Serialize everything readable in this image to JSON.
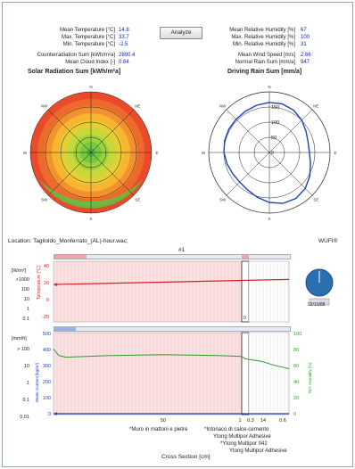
{
  "climate": {
    "left_stats": [
      {
        "label": "Mean Temperature [°C]",
        "value": "14.8"
      },
      {
        "label": "Max. Temperature [°C]",
        "value": "33.7"
      },
      {
        "label": "Min. Temperature [°C]",
        "value": "-2.5"
      }
    ],
    "left_stats2": [
      {
        "label": "Counterradiation Sum [kWh/m²a]",
        "value": "2890.4"
      },
      {
        "label": "Mean Cloud Index [-]",
        "value": "0.64"
      }
    ],
    "right_stats": [
      {
        "label": "Mean Relative Humidity [%]",
        "value": "67"
      },
      {
        "label": "Max. Relative Humidity [%]",
        "value": "100"
      },
      {
        "label": "Min. Relative Humidity [%]",
        "value": "31"
      }
    ],
    "right_stats2": [
      {
        "label": "Mean Wind Speed [m/s]",
        "value": "2.66"
      },
      {
        "label": "Normal Rain Sum [mm/a]",
        "value": "947"
      }
    ],
    "analyze_label": "Analyze",
    "solar_title": "Solar Radiation Sum [kWh/m²a]",
    "rain_title": "Driving Rain Sum [mm/a]",
    "compass": [
      "N",
      "NE",
      "E",
      "SE",
      "S",
      "SW",
      "W",
      "NW"
    ],
    "rain_rings": [
      "150",
      "100",
      "50",
      "0"
    ]
  },
  "location_label": "Location: Taglioldo_Monferrato_(AL)-hour.wac;",
  "brand": "WUFI®",
  "run_label": "#1",
  "top_chart": {
    "y_unit": "[W/m²]",
    "y_ticks": [
      ">1000",
      "100",
      "10",
      "1",
      "0.1"
    ],
    "temp_label": "Temperature [°C]",
    "temp_ticks": [
      "40",
      "20",
      "0",
      "-20"
    ],
    "temp_axis_zero": "0",
    "temp_series": {
      "name": "",
      "start": 17,
      "end": 22
    },
    "clock": "02/10/88"
  },
  "bottom_chart": {
    "y_unit": "[mm/h]",
    "y_ticks_left": [
      "> 100",
      "10",
      "1",
      "0.1",
      "0.01"
    ],
    "wc_label": "Water Content [kg/m³]",
    "wc_ticks": [
      "500",
      "400",
      "300",
      "200",
      "100",
      "0"
    ],
    "rh_label": "Rel. Humidity [%]",
    "rh_ticks": [
      "100",
      "80",
      "60",
      "40",
      "20",
      "0"
    ],
    "x_ticks": [
      "50",
      "1",
      "0.3",
      "14",
      "0.6"
    ],
    "x_label": "Cross Section [cm]"
  },
  "layers": [
    "*Muro in mattoni e pietre",
    "*Intonaco di calce-cemento",
    "Ytong Multipor Adhesive",
    "*Ytong Multipor 042",
    "Ytong Multipor Adhesive"
  ],
  "colors": {
    "temp": "#d4202b",
    "rh": "#2f9a2f",
    "wc": "#1f3fbf",
    "accent": "#1a23b0"
  }
}
